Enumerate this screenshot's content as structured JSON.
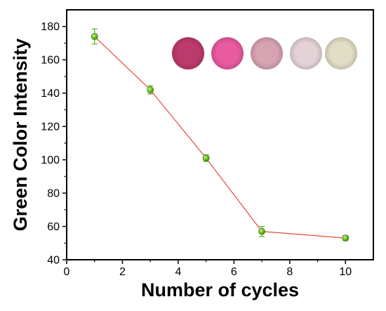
{
  "chart_data": {
    "type": "line",
    "title": "",
    "xlabel": "Number of cycles",
    "ylabel": "Green Color Intensity",
    "xlim": [
      0,
      11
    ],
    "ylim": [
      40,
      190
    ],
    "x_ticks": [
      0,
      2,
      4,
      6,
      8,
      10
    ],
    "y_ticks": [
      40,
      60,
      80,
      100,
      120,
      140,
      160,
      180
    ],
    "grid": false,
    "legend": "none",
    "series": [
      {
        "x": [
          1,
          3,
          5,
          7,
          10
        ],
        "y": [
          174,
          142,
          101,
          57,
          53
        ],
        "error": [
          4.5,
          2.5,
          2,
          3,
          1.5
        ],
        "line_color": "#e8493c",
        "marker_color": "#5aad1f"
      }
    ],
    "inset_swatches": [
      {
        "cycle": 1,
        "color": "#bd3a6c"
      },
      {
        "cycle": 3,
        "color": "#e95aa0"
      },
      {
        "cycle": 5,
        "color": "#d7a3b2"
      },
      {
        "cycle": 7,
        "color": "#e5d2d6"
      },
      {
        "cycle": 10,
        "color": "#e2ddc5"
      }
    ]
  }
}
